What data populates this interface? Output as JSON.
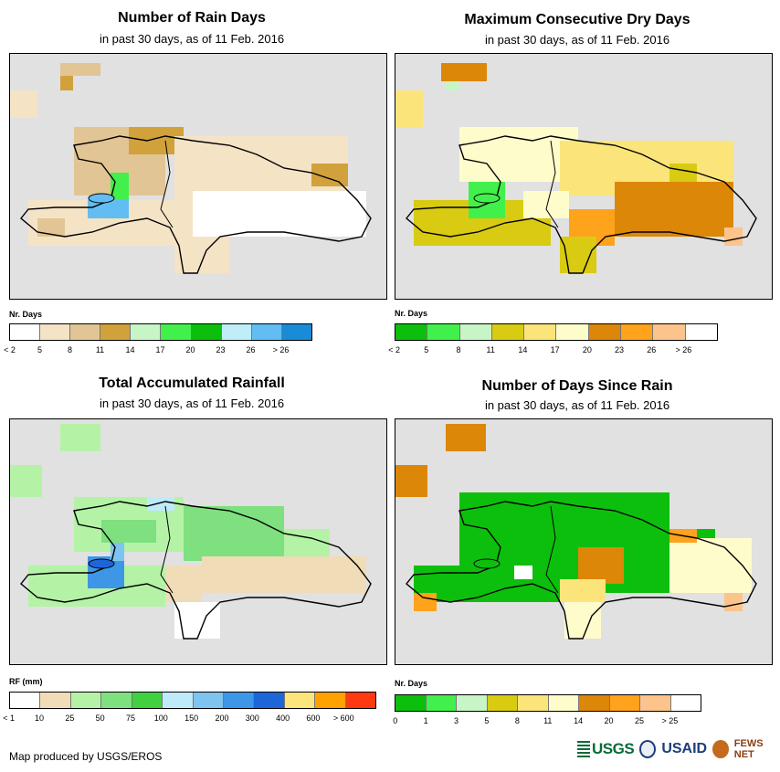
{
  "panels": [
    {
      "title": "Number of Rain Days",
      "subtitle": "in past 30 days, as of 11 Feb. 2016",
      "legend": {
        "title": "Nr. Days",
        "colors": [
          "#ffffff",
          "#f5e3c6",
          "#e2c594",
          "#d1a23b",
          "#c7f5c6",
          "#42f04b",
          "#0dbf0d",
          "#bfeef9",
          "#62bdf2",
          "#1a8bd6"
        ],
        "labels": [
          "< 2",
          "5",
          "8",
          "11",
          "14",
          "17",
          "20",
          "23",
          "26",
          "> 26"
        ]
      }
    },
    {
      "title": "Maximum Consecutive Dry Days",
      "subtitle": "in past 30 days, as of 11 Feb. 2016",
      "legend": {
        "title": "Nr. Days",
        "colors": [
          "#0dbf0d",
          "#42f04b",
          "#c7f5c6",
          "#d8cb12",
          "#fbe57a",
          "#fffccc",
          "#dd8708",
          "#ffa21c",
          "#fcc38d",
          "#ffffff"
        ],
        "labels": [
          "< 2",
          "5",
          "8",
          "11",
          "14",
          "17",
          "20",
          "23",
          "26",
          "> 26"
        ]
      }
    },
    {
      "title": "Total Accumulated Rainfall",
      "subtitle": "in past 30 days, as of 11 Feb. 2016",
      "legend": {
        "title": "RF (mm)",
        "colors": [
          "#ffffff",
          "#f0dcb6",
          "#b4f3a6",
          "#7ee07e",
          "#40d040",
          "#bfeaf9",
          "#7ec4f0",
          "#3e96e6",
          "#1c66d8",
          "#fde57e",
          "#ffa200",
          "#ff3a10"
        ],
        "labels": [
          "< 1",
          "10",
          "25",
          "50",
          "75",
          "100",
          "150",
          "200",
          "300",
          "400",
          "600",
          "> 600"
        ]
      }
    },
    {
      "title": "Number of Days Since Rain",
      "subtitle": "in past 30 days, as of 11 Feb. 2016",
      "legend": {
        "title": "Nr. Days",
        "colors": [
          "#0dbf0d",
          "#42f04b",
          "#c7f5c6",
          "#d8cb12",
          "#fbe57a",
          "#fffccc",
          "#dd8708",
          "#ffa21c",
          "#fcc38d",
          "#ffffff"
        ],
        "labels": [
          "0",
          "1",
          "3",
          "5",
          "8",
          "11",
          "14",
          "20",
          "25",
          "> 25"
        ]
      }
    }
  ],
  "footer": "Map produced by USGS/EROS",
  "logos": {
    "usgs": "USGS",
    "usaid": "USAID",
    "fews": "FEWS NET"
  }
}
